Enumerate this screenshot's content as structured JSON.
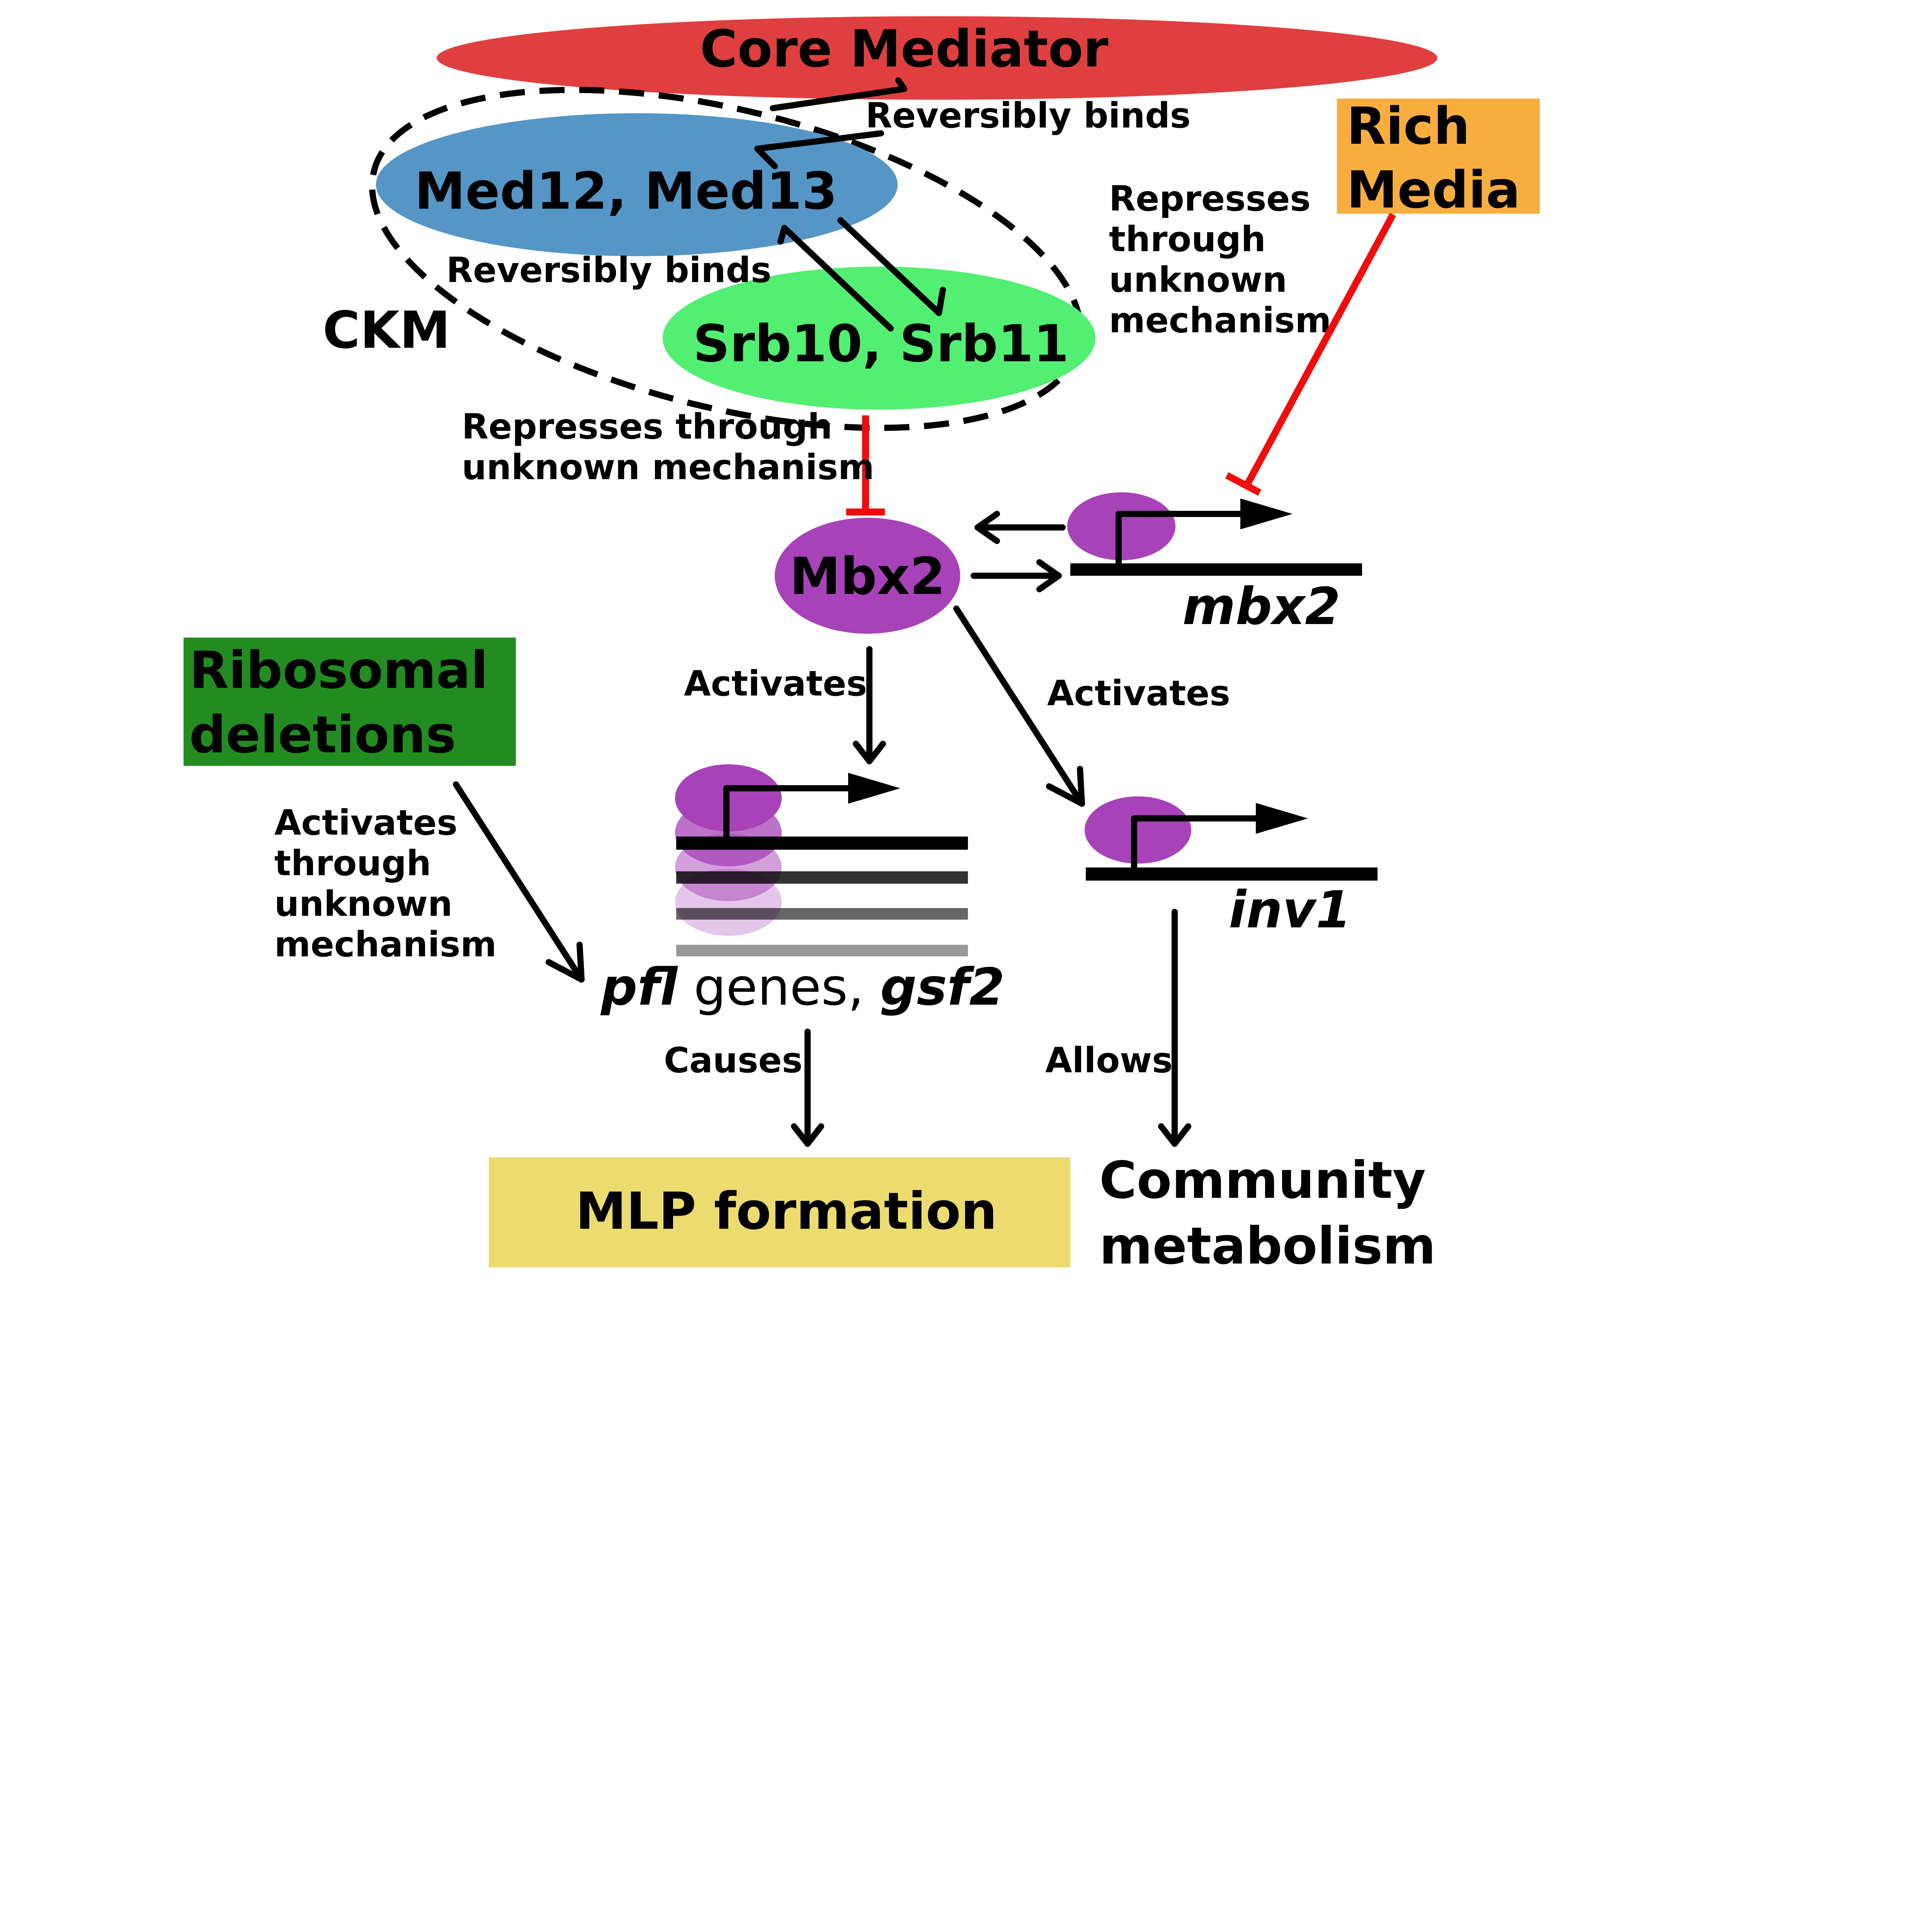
{
  "colors": {
    "core_mediator": "#e03f3f",
    "med12_13": "#5596c6",
    "srb10_11": "#52ef72",
    "mbx2_protein": "#a742b8",
    "rich_media": "#f7ae3f",
    "ribosomal": "#228c20",
    "mlp_box": "#ecdc70",
    "repress": "#f20b0b"
  },
  "nodes": {
    "core_mediator": "Core Mediator",
    "med12_13": "Med12, Med13",
    "srb10_11": "Srb10, Srb11",
    "ckm": "CKM",
    "rich_media": [
      "Rich",
      "Media"
    ],
    "mbx2_protein": "Mbx2",
    "mbx2_gene": "mbx2",
    "ribosomal": [
      "Ribosomal",
      "deletions"
    ],
    "inv1_gene": "inv1",
    "pfl_genes": {
      "part1": "pfl",
      "part2": " genes, ",
      "part3": "gsf2"
    },
    "mlp": "MLP formation",
    "community": [
      "Community",
      "metabolism"
    ]
  },
  "edge_labels": {
    "reversibly_binds_top": "Reversibly binds",
    "reversibly_binds_mid": "Reversibly binds",
    "represses_right": [
      "Represses",
      "through",
      "unknown",
      "mechanism"
    ],
    "represses_left": [
      "Represses through",
      "unknown mechanism"
    ],
    "activates_down": "Activates",
    "activates_right": "Activates",
    "activates_ribo": [
      "Activates",
      "through",
      "unknown",
      "mechanism"
    ],
    "causes": "Causes",
    "allows": "Allows"
  }
}
